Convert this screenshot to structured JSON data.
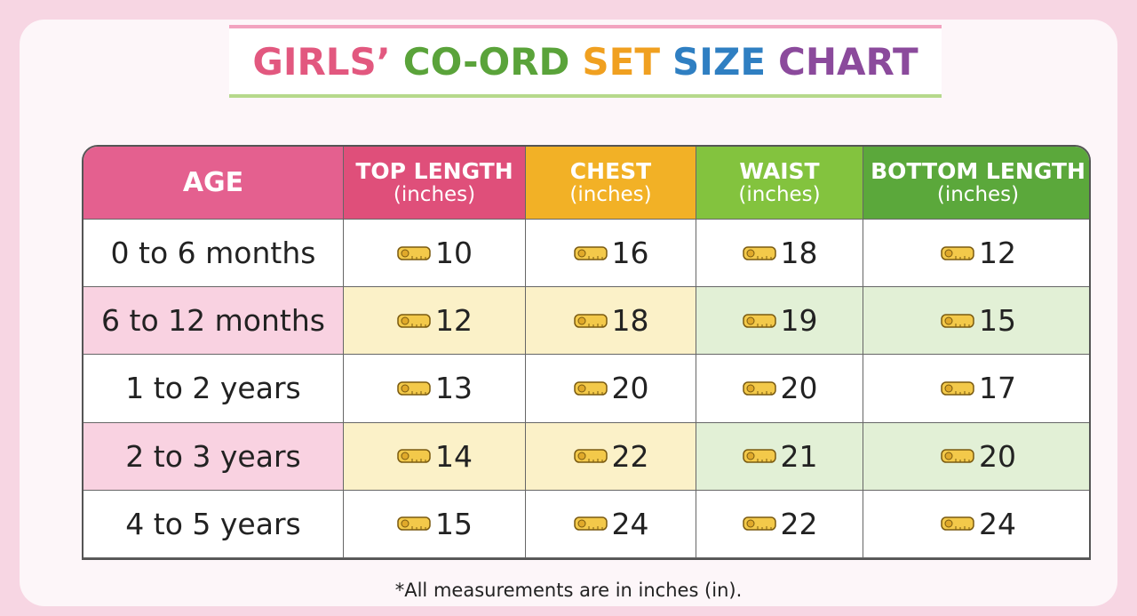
{
  "title": [
    "GIRLS’",
    "CO-ORD",
    "SET",
    "SIZE",
    "CHART"
  ],
  "table": {
    "header": [
      {
        "label": "AGE"
      },
      {
        "label": "TOP LENGTH",
        "unit": "(inches)"
      },
      {
        "label": "CHEST",
        "unit": "(inches)"
      },
      {
        "label": "WAIST",
        "unit": "(inches)"
      },
      {
        "label": "BOTTOM LENGTH",
        "unit": "(inches)"
      }
    ],
    "rows": [
      [
        "0 to 6 months",
        10,
        16,
        18,
        12
      ],
      [
        "6 to 12 months",
        12,
        18,
        19,
        15
      ],
      [
        "1 to 2 years",
        13,
        20,
        20,
        17
      ],
      [
        "2 to 3 years",
        14,
        22,
        21,
        20
      ],
      [
        "4 to 5 years",
        15,
        24,
        22,
        24
      ]
    ]
  },
  "footnote": "*All measurements are in inches (in)."
}
